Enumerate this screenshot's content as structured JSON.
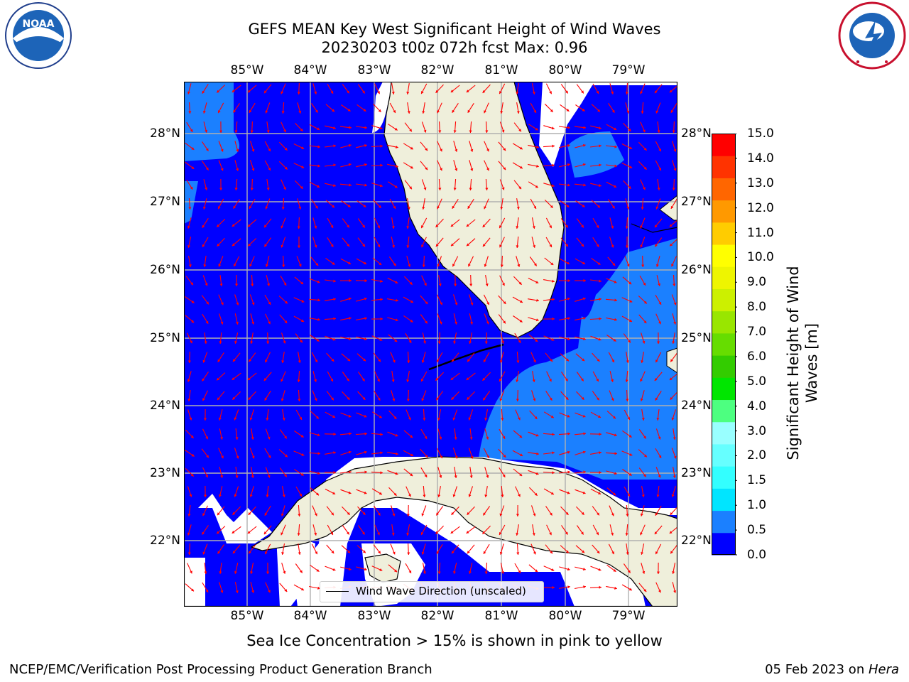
{
  "title": {
    "line1": "GEFS MEAN Key West Significant Height of Wind Waves",
    "line2": "20230203 t00z 072h fcst   Max: 0.96"
  },
  "map": {
    "lon_labels": [
      "85°W",
      "84°W",
      "83°W",
      "82°W",
      "81°W",
      "80°W",
      "79°W"
    ],
    "lat_labels": [
      "28°N",
      "27°N",
      "26°N",
      "25°N",
      "24°N",
      "23°N",
      "22°N"
    ],
    "land_color": "#efefdb",
    "ocean_colors": {
      "low": "#0000ff",
      "mid": "#1b80ff"
    },
    "arrow_color": "#ff0000",
    "grid": true
  },
  "legend": {
    "label": "Wind Wave Direction (unscaled)"
  },
  "colorbar": {
    "label": "Significant Height of Wind Waves [m]",
    "ticks": [
      "0.0",
      "0.5",
      "1.0",
      "1.5",
      "2.0",
      "3.0",
      "4.0",
      "5.0",
      "6.0",
      "7.0",
      "8.0",
      "9.0",
      "10.0",
      "11.0",
      "12.0",
      "13.0",
      "14.0",
      "15.0"
    ],
    "colors": [
      "#0000ff",
      "#1b80ff",
      "#00e5ff",
      "#33ffff",
      "#66ffff",
      "#99ffff",
      "#4dff80",
      "#00e600",
      "#33cc00",
      "#66dd00",
      "#99e600",
      "#ccf000",
      "#eef500",
      "#ffff00",
      "#ffcc00",
      "#ff9900",
      "#ff6600",
      "#ff3300",
      "#ff0000"
    ]
  },
  "subtitle": "Sea Ice Concentration > 15% is shown in pink to yellow",
  "footer": {
    "left": "NCEP/EMC/Verification Post Processing Product Generation Branch",
    "right_date": "05 Feb 2023 on ",
    "right_host": "Hera"
  },
  "logos": {
    "noaa": "NOAA",
    "nws": "NATIONAL WEATHER SERVICE"
  }
}
